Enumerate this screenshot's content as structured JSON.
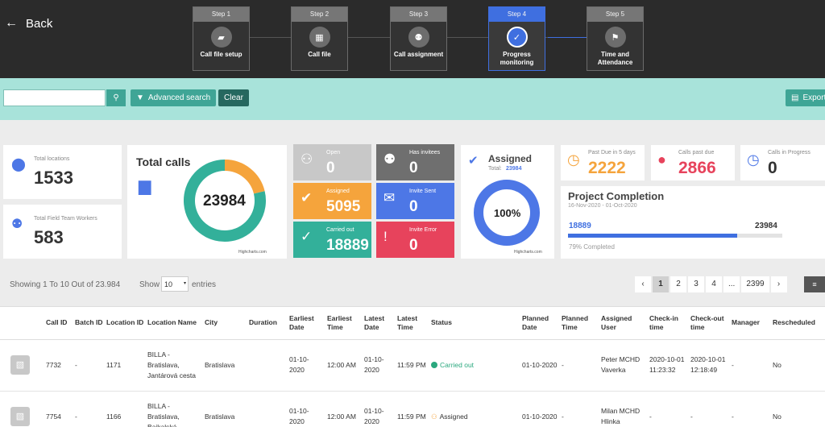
{
  "header": {
    "back_label": "Back",
    "steps": [
      {
        "head": "Step 1",
        "label": "Call file setup",
        "icon": "folder-icon",
        "glyph": "▰"
      },
      {
        "head": "Step 2",
        "label": "Call file",
        "icon": "store-icon",
        "glyph": "▦"
      },
      {
        "head": "Step 3",
        "label": "Call assignment",
        "icon": "group-icon",
        "glyph": "⚉"
      },
      {
        "head": "Step 4",
        "label": "Progress monitoring",
        "icon": "check-badge-icon",
        "glyph": "✓"
      },
      {
        "head": "Step 5",
        "label": "Time and Attendance",
        "icon": "flag-icon",
        "glyph": "⚑"
      }
    ]
  },
  "search": {
    "placeholder": "",
    "advanced_label": "Advanced search",
    "clear_label": "Clear",
    "export_label": "Export"
  },
  "stats": {
    "total_locations_label": "Total locations",
    "total_locations": "1533",
    "field_workers_label": "Total Field Team Workers",
    "field_workers": "583",
    "total_calls_label": "Total calls",
    "total_calls": "23984",
    "total_calls_credit": "Highcharts.com",
    "tiles": [
      {
        "title": "Open",
        "value": "0",
        "color": "#c8c8c8",
        "icon": "person-off-icon",
        "glyph": "⚇"
      },
      {
        "title": "Has invitees",
        "value": "0",
        "color": "#6f6f6f",
        "icon": "group-icon",
        "glyph": "⚉"
      },
      {
        "title": "Assigned",
        "value": "5095",
        "color": "#f5a43c",
        "icon": "person-check-icon",
        "glyph": "✔"
      },
      {
        "title": "Invite Sent",
        "value": "0",
        "color": "#4d77e6",
        "icon": "mail-check-icon",
        "glyph": "✉"
      },
      {
        "title": "Carried out",
        "value": "18889",
        "color": "#33b09a",
        "icon": "check-circle-icon",
        "glyph": "✓"
      },
      {
        "title": "Invite Error",
        "value": "0",
        "color": "#e7435c",
        "icon": "person-alert-icon",
        "glyph": "!"
      }
    ],
    "assigned_label": "Assigned",
    "assigned_total_prefix": "Total:",
    "assigned_total": "23984",
    "assigned_percent": "100%",
    "assigned_credit": "Highcharts.com",
    "past_due5_label": "Past Due in 5 days",
    "past_due5": "2222",
    "calls_past_due_label": "Calls past due",
    "calls_past_due": "2866",
    "in_progress_label": "Calls in Progress",
    "in_progress": "0",
    "project_title": "Project Completion",
    "project_dates": "16-Nov-2020 - 01-Oct-2020",
    "project_done": "18889",
    "project_total": "23984",
    "project_completed_text": "79% Completed",
    "project_fraction": 0.79
  },
  "donut": {
    "carried_out": 18889,
    "assigned": 5095,
    "colors": {
      "carried": "#33b09a",
      "assigned": "#f5a43c",
      "ring": "#4d77e6"
    }
  },
  "list": {
    "showing": "Showing 1 To 10 Out of 23.984",
    "show_label": "Show",
    "show_value": "10",
    "entries_label": "entries",
    "pages": [
      "‹",
      "1",
      "2",
      "3",
      "4",
      "...",
      "2399",
      "›"
    ]
  },
  "table": {
    "headers": [
      "",
      "Call ID",
      "Batch ID",
      "Location ID",
      "Location Name",
      "City",
      "Duration",
      "Earliest Date",
      "Earliest Time",
      "Latest Date",
      "Latest Time",
      "Status",
      "Planned Date",
      "Planned Time",
      "Assigned User",
      "Check-in time",
      "Check-out time",
      "Manager",
      "Rescheduled"
    ],
    "rows": [
      {
        "call_id": "7732",
        "batch": "-",
        "loc_id": "1171",
        "loc_name": "BILLA - Bratislava, Jantárová cesta",
        "city": "Bratislava",
        "duration": "",
        "e_date": "01-10-2020",
        "e_time": "12:00 AM",
        "l_date": "01-10-2020",
        "l_time": "11:59 PM",
        "status": "Carried out",
        "p_date": "01-10-2020",
        "p_time": "-",
        "user": "Peter MCHD Vaverka",
        "checkin": "2020-10-01 11:23:32",
        "checkout": "2020-10-01 12:18:49",
        "manager": "-",
        "rescheduled": "No"
      },
      {
        "call_id": "7754",
        "batch": "-",
        "loc_id": "1166",
        "loc_name": "BILLA - Bratislava, Bajkalská",
        "city": "Bratislava",
        "duration": "",
        "e_date": "01-10-2020",
        "e_time": "12:00 AM",
        "l_date": "01-10-2020",
        "l_time": "11:59 PM",
        "status": "Assigned",
        "p_date": "01-10-2020",
        "p_time": "-",
        "user": "Milan MCHD Hlinka",
        "checkin": "-",
        "checkout": "-",
        "manager": "-",
        "rescheduled": "No"
      }
    ]
  }
}
